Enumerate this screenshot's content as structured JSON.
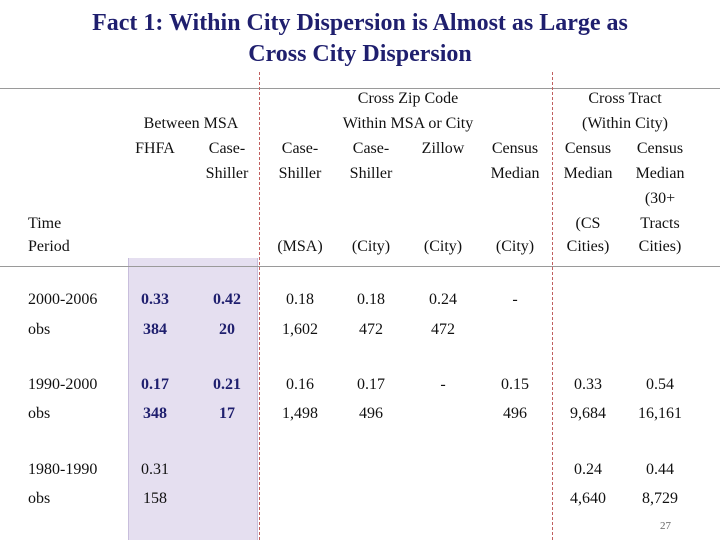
{
  "title": {
    "line1": "Fact 1:  Within City Dispersion is Almost as Large as",
    "line2": "Cross City Dispersion"
  },
  "headers": {
    "between_msa": "Between MSA",
    "fhfa": "FHFA",
    "case_shiller_1": "Case-",
    "case_shiller_2": "Shiller",
    "cross_zip_1": "Cross Zip Code",
    "cross_zip_2": "Within MSA or City",
    "msa_cs_1": "Case-",
    "msa_cs_2": "Shiller",
    "msa_cs_3": "(MSA)",
    "city_cs_1": "Case-",
    "city_cs_2": "Shiller",
    "city_cs_3": "(City)",
    "zillow_1": "Zillow",
    "zillow_3": "(City)",
    "census_1": "Census",
    "census_2": "Median",
    "census_3": "(City)",
    "cross_tract_1": "Cross Tract",
    "cross_tract_2": "(Within City)",
    "tract_cs_1": "Census",
    "tract_cs_2": "Median",
    "tract_cs_3": "(CS",
    "tract_cs_4": "Cities)",
    "tract_30_1": "Census",
    "tract_30_2": "Median",
    "tract_30_3": "(30+",
    "tract_30_4": "Tracts",
    "tract_30_5": "Cities)",
    "time_1": "Time",
    "time_2": "Period"
  },
  "rows": [
    {
      "label": "2000-2006",
      "fhfa": "0.33",
      "cs": "0.42",
      "msa": "0.18",
      "city": "0.18",
      "zillow": "0.24",
      "census": "-",
      "cscities": "",
      "tracts": ""
    },
    {
      "label": "obs",
      "fhfa": "384",
      "cs": "20",
      "msa": "1,602",
      "city": "472",
      "zillow": "472",
      "census": "",
      "cscities": "",
      "tracts": ""
    },
    {
      "label": "1990-2000",
      "fhfa": "0.17",
      "cs": "0.21",
      "msa": "0.16",
      "city": "0.17",
      "zillow": "-",
      "census": "0.15",
      "cscities": "0.33",
      "tracts": "0.54"
    },
    {
      "label": "obs",
      "fhfa": "348",
      "cs": "17",
      "msa": "1,498",
      "city": "496",
      "zillow": "",
      "census": "496",
      "cscities": "9,684",
      "tracts": "16,161"
    },
    {
      "label": "1980-1990",
      "fhfa": "0.31",
      "cs": "",
      "msa": "",
      "city": "",
      "zillow": "",
      "census": "",
      "cscities": "0.24",
      "tracts": "0.44"
    },
    {
      "label": "obs",
      "fhfa": "158",
      "cs": "",
      "msa": "",
      "city": "",
      "zillow": "",
      "census": "",
      "cscities": "4,640",
      "tracts": "8,729"
    }
  ],
  "page_number": "27"
}
